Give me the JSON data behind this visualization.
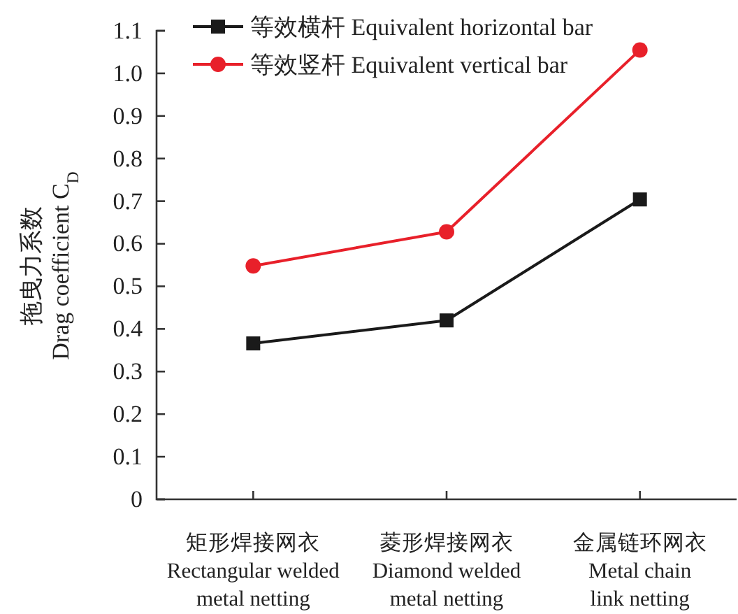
{
  "chart_data": {
    "type": "line",
    "ylabel": "拖曳力系数\nDrag coefficient C$_{D}$",
    "categories": [
      "矩形焊接网衣\nRectangular welded\nmetal netting",
      "菱形焊接网衣\nDiamond welded\nmetal netting",
      "金属链环网衣\nMetal chain\nlink netting"
    ],
    "series": [
      {
        "name": "等效横杆 Equivalent horizontal bar",
        "color": "#1a1a1a",
        "marker": "square",
        "values": [
          0.366,
          0.42,
          0.704
        ]
      },
      {
        "name": "等效竖杆 Equivalent vertical bar",
        "color": "#e8202a",
        "marker": "circle",
        "values": [
          0.548,
          0.628,
          1.055
        ]
      }
    ],
    "ylim": [
      0,
      1.1
    ],
    "yticks": [
      0,
      {
        "value": 0.1,
        "label": "0.1"
      },
      {
        "value": 0.2,
        "label": "0.2"
      },
      {
        "value": 0.3,
        "label": "0.3"
      },
      {
        "value": 0.4,
        "label": "0.4"
      },
      {
        "value": 0.5,
        "label": "0.5"
      },
      {
        "value": 0.6,
        "label": "0.6"
      },
      {
        "value": 0.7,
        "label": "0.7"
      },
      {
        "value": 0.8,
        "label": "0.8"
      },
      {
        "value": 0.9,
        "label": "0.9"
      },
      {
        "value": 1.0,
        "label": "1.0"
      },
      {
        "value": 1.1,
        "label": "1.1"
      }
    ],
    "grid": false,
    "legend": "top",
    "line_style": "solid"
  }
}
